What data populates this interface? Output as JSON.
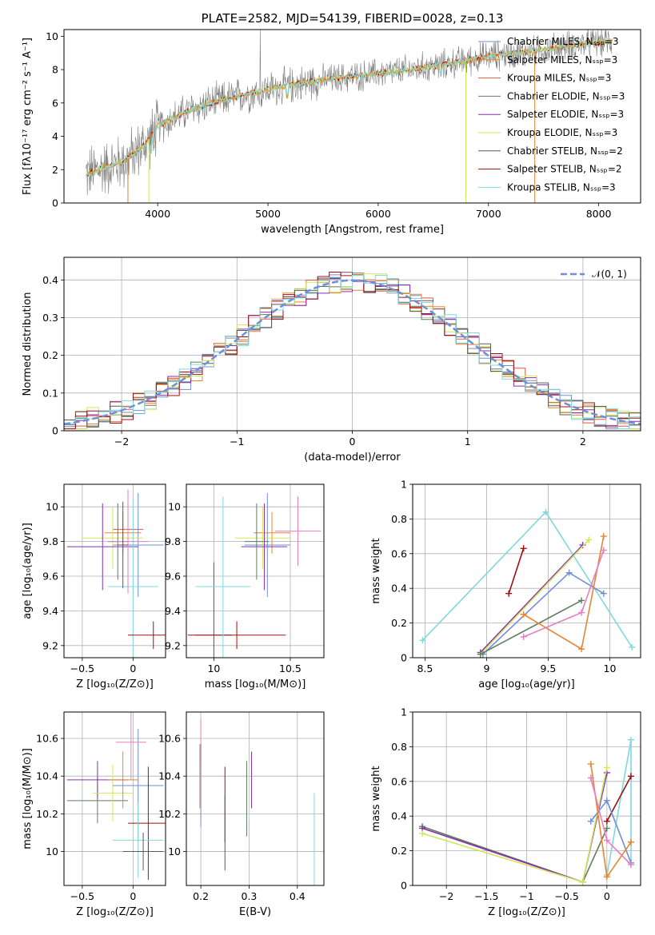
{
  "colors": {
    "chabrier_miles": "#6f8fd8",
    "salpeter_miles": "#e8852e",
    "kroupa_miles": "#e05a3c",
    "chabrier_elodie": "#5d7f5d",
    "salpeter_elodie": "#8a2fb0",
    "kroupa_elodie": "#cfe85a",
    "chabrier_stelib": "#5a5a5a",
    "salpeter_stelib": "#a01010",
    "kroupa_stelib": "#7fd9dd",
    "extra_pink": "#e87ec0",
    "normal_curve": "#6f8fd8",
    "grid": "#b0b0b0",
    "data_spectrum": "#7f7f7f"
  },
  "chart_data": [
    {
      "id": "spectrum",
      "type": "line",
      "title": "PLATE=2582, MJD=54139, FIBERID=0028, z=0.13",
      "xlabel": "wavelength [Angstrom, rest frame]",
      "ylabel": "Flux [fλ10⁻¹⁷ erg cm⁻² s⁻¹ A⁻¹]",
      "xlim": [
        3150,
        8380
      ],
      "ylim": [
        0,
        10.4
      ],
      "xticks": [
        4000,
        5000,
        6000,
        7000,
        8000
      ],
      "yticks": [
        0,
        2,
        4,
        6,
        8,
        10
      ],
      "grid": false,
      "legend_position": "top-right",
      "legend": [
        "Chabrier MILES, Nₛₛₚ=3",
        "Salpeter MILES, Nₛₛₚ=3",
        "Kroupa MILES, Nₛₛₚ=3",
        "Chabrier ELODIE, Nₛₛₚ=3",
        "Salpeter ELODIE, Nₛₛₚ=3",
        "Kroupa ELODIE, Nₛₛₚ=3",
        "Chabrier STELIB, Nₛₛₚ=2",
        "Salpeter STELIB, Nₛₛₚ=2",
        "Kroupa STELIB, Nₛₛₚ=3"
      ],
      "continuum": {
        "x": [
          3350,
          3500,
          3700,
          3900,
          4000,
          4300,
          4600,
          5000,
          5400,
          5800,
          6200,
          6600,
          7000,
          7400,
          7800,
          8100
        ],
        "y": [
          1.7,
          2.1,
          2.5,
          3.6,
          4.6,
          5.6,
          6.2,
          6.8,
          7.3,
          7.6,
          7.9,
          8.3,
          8.8,
          9.1,
          9.5,
          9.7
        ]
      }
    },
    {
      "id": "residual_histogram",
      "type": "line",
      "xlabel": "(data-model)/error",
      "ylabel": "Normed distribution",
      "xlim": [
        -2.5,
        2.5
      ],
      "ylim": [
        0,
        0.46
      ],
      "xticks": [
        -2,
        -1,
        0,
        1,
        2
      ],
      "yticks": [
        0.0,
        0.1,
        0.2,
        0.3,
        0.4
      ],
      "grid": true,
      "legend_position": "top-right",
      "legend": [
        "𝒩(0, 1)"
      ],
      "bin_width": 0.1
    },
    {
      "id": "age_vs_Z",
      "type": "scatter",
      "xlabel": "Z [log₁₀(Z/Z⊙)]",
      "ylabel": "age  [log₁₀(age/yr)]",
      "xlim": [
        -0.68,
        0.32
      ],
      "ylim": [
        9.13,
        10.13
      ],
      "xticks": [
        -0.5,
        0.0
      ],
      "yticks": [
        9.2,
        9.4,
        9.6,
        9.8,
        10.0
      ],
      "grid": true,
      "points": [
        {
          "series": "salpeter_miles",
          "x": -0.1,
          "xerr": 0.18,
          "y": 9.85,
          "yerr": 0.12
        },
        {
          "series": "kroupa_miles",
          "x": -0.05,
          "xerr": 0.15,
          "y": 9.87,
          "yerr": 0.16
        },
        {
          "series": "chabrier_miles",
          "x": 0.05,
          "xerr": 0.25,
          "y": 9.78,
          "yerr": 0.3
        },
        {
          "series": "kroupa_elodie",
          "x": -0.2,
          "xerr": 0.3,
          "y": 9.82,
          "yerr": 0.18
        },
        {
          "series": "salpeter_elodie",
          "x": -0.3,
          "xerr": 0.35,
          "y": 9.77,
          "yerr": 0.25
        },
        {
          "series": "chabrier_elodie",
          "x": -0.15,
          "xerr": 0.1,
          "y": 9.8,
          "yerr": 0.22
        },
        {
          "series": "kroupa_stelib",
          "x": 0.0,
          "xerr": 0.25,
          "y": 9.54,
          "yerr": 0.5
        },
        {
          "series": "salpeter_stelib",
          "x": 0.2,
          "xerr": 0.25,
          "y": 9.26,
          "yerr": 0.08
        },
        {
          "series": "extra_pink",
          "x": -0.05,
          "xerr": 0.2,
          "y": 9.8,
          "yerr": 0.3
        },
        {
          "series": "chabrier_stelib",
          "x": -0.1,
          "xerr": 0.05,
          "y": 9.78,
          "yerr": 0.25
        }
      ]
    },
    {
      "id": "age_vs_mass",
      "type": "scatter",
      "xlabel": "mass [log₁₀(M/M⊙)]",
      "ylabel": "",
      "xlim": [
        9.82,
        10.72
      ],
      "ylim": [
        9.13,
        10.13
      ],
      "xticks": [
        10.0,
        10.5
      ],
      "yticks": [
        9.2,
        9.4,
        9.6,
        9.8,
        10.0
      ],
      "grid": true,
      "points": [
        {
          "series": "chabrier_stelib",
          "x": 10.0,
          "xerr": 0.12,
          "y": 9.26,
          "yerr": 0.42
        },
        {
          "series": "salpeter_stelib",
          "x": 10.15,
          "xerr": 0.32,
          "y": 9.26,
          "yerr": 0.08
        },
        {
          "series": "kroupa_stelib",
          "x": 10.06,
          "xerr": 0.18,
          "y": 9.54,
          "yerr": 0.52
        },
        {
          "series": "chabrier_miles",
          "x": 10.35,
          "xerr": 0.15,
          "y": 9.78,
          "yerr": 0.3
        },
        {
          "series": "salpeter_miles",
          "x": 10.38,
          "xerr": 0.12,
          "y": 9.85,
          "yerr": 0.12
        },
        {
          "series": "kroupa_elodie",
          "x": 10.32,
          "xerr": 0.18,
          "y": 9.82,
          "yerr": 0.18
        },
        {
          "series": "salpeter_elodie",
          "x": 10.33,
          "xerr": 0.15,
          "y": 9.77,
          "yerr": 0.25
        },
        {
          "series": "chabrier_elodie",
          "x": 10.28,
          "xerr": 0.08,
          "y": 9.8,
          "yerr": 0.22
        },
        {
          "series": "extra_pink",
          "x": 10.55,
          "xerr": 0.15,
          "y": 9.86,
          "yerr": 0.2
        }
      ]
    },
    {
      "id": "mass_weight_vs_age",
      "type": "line",
      "xlabel": "age  [log₁₀(age/yr)]",
      "ylabel": "mass weight",
      "xlim": [
        8.4,
        10.25
      ],
      "ylim": [
        0,
        1
      ],
      "xticks": [
        8.5,
        9.0,
        9.5,
        10.0
      ],
      "yticks": [
        0.0,
        0.2,
        0.4,
        0.6,
        0.8,
        1.0
      ],
      "grid": true,
      "series": [
        {
          "color": "kroupa_stelib",
          "x": [
            8.48,
            9.48,
            10.18
          ],
          "y": [
            0.1,
            0.84,
            0.06
          ]
        },
        {
          "color": "salpeter_stelib",
          "x": [
            9.18,
            9.3
          ],
          "y": [
            0.37,
            0.63
          ]
        },
        {
          "color": "salpeter_elodie",
          "x": [
            8.95,
            9.78
          ],
          "y": [
            0.03,
            0.65
          ]
        },
        {
          "color": "kroupa_elodie",
          "x": [
            8.95,
            9.83
          ],
          "y": [
            0.02,
            0.68
          ]
        },
        {
          "color": "chabrier_miles",
          "x": [
            8.97,
            9.67,
            9.95
          ],
          "y": [
            0.02,
            0.49,
            0.37
          ]
        },
        {
          "color": "chabrier_elodie",
          "x": [
            8.95,
            9.77
          ],
          "y": [
            0.02,
            0.33
          ]
        },
        {
          "color": "salpeter_miles",
          "x": [
            9.3,
            9.77,
            9.95
          ],
          "y": [
            0.25,
            0.05,
            0.7
          ]
        },
        {
          "color": "extra_pink",
          "x": [
            9.3,
            9.77,
            9.95
          ],
          "y": [
            0.12,
            0.26,
            0.62
          ]
        }
      ]
    },
    {
      "id": "mass_vs_Z",
      "type": "scatter",
      "xlabel": "Z [log₁₀(Z/Z⊙)]",
      "ylabel": "mass [log₁₀(M/M⊙)]",
      "xlim": [
        -0.68,
        0.32
      ],
      "ylim": [
        9.82,
        10.74
      ],
      "xticks": [
        -0.5,
        0.0
      ],
      "yticks": [
        10.0,
        10.2,
        10.4,
        10.6
      ],
      "grid": true,
      "points": [
        {
          "series": "chabrier_elodie",
          "x": -0.35,
          "xerr": 0.3,
          "y": 10.27,
          "yerr": 0.12
        },
        {
          "series": "salpeter_elodie",
          "x": -0.35,
          "xerr": 0.3,
          "y": 10.38,
          "yerr": 0.1
        },
        {
          "series": "kroupa_elodie",
          "x": -0.2,
          "xerr": 0.2,
          "y": 10.31,
          "yerr": 0.15
        },
        {
          "series": "chabrier_miles",
          "x": 0.05,
          "xerr": 0.25,
          "y": 10.35,
          "yerr": 0.3
        },
        {
          "series": "extra_pink",
          "x": -0.02,
          "xerr": 0.15,
          "y": 10.58,
          "yerr": 0.2
        },
        {
          "series": "salpeter_miles",
          "x": -0.1,
          "xerr": 0.15,
          "y": 10.38,
          "yerr": 0.15
        },
        {
          "series": "salpeter_stelib",
          "x": 0.15,
          "xerr": 0.2,
          "y": 10.15,
          "yerr": 0.3
        },
        {
          "series": "kroupa_stelib",
          "x": 0.05,
          "xerr": 0.25,
          "y": 10.06,
          "yerr": 0.2
        },
        {
          "series": "chabrier_stelib",
          "x": 0.1,
          "xerr": 0.2,
          "y": 10.0,
          "yerr": 0.1
        }
      ]
    },
    {
      "id": "mass_vs_ebv",
      "type": "scatter",
      "xlabel": "E(B-V)",
      "ylabel": "",
      "xlim": [
        0.17,
        0.455
      ],
      "ylim": [
        9.82,
        10.74
      ],
      "xticks": [
        0.2,
        0.3,
        0.4
      ],
      "yticks": [
        10.0,
        10.2,
        10.4,
        10.6
      ],
      "grid": true,
      "points": [
        {
          "series": "salpeter_miles",
          "x": 0.198,
          "y": 10.4,
          "yerr": 0.17
        },
        {
          "series": "extra_pink",
          "x": 0.2,
          "y": 10.58,
          "yerr": 0.12
        },
        {
          "series": "chabrier_miles",
          "x": 0.2,
          "y": 10.35,
          "yerr": 0.22
        },
        {
          "series": "salpeter_stelib",
          "x": 0.25,
          "y": 10.25,
          "yerr": 0.2
        },
        {
          "series": "chabrier_stelib",
          "x": 0.25,
          "y": 10.1,
          "yerr": 0.2
        },
        {
          "series": "kroupa_elodie",
          "x": 0.3,
          "y": 10.32,
          "yerr": 0.15
        },
        {
          "series": "chabrier_elodie",
          "x": 0.295,
          "y": 10.28,
          "yerr": 0.2
        },
        {
          "series": "salpeter_elodie",
          "x": 0.305,
          "y": 10.38,
          "yerr": 0.15
        },
        {
          "series": "kroupa_stelib",
          "x": 0.435,
          "y": 10.06,
          "yerr": 0.25
        }
      ]
    },
    {
      "id": "mass_weight_vs_Z",
      "type": "line",
      "xlabel": "Z [log₁₀(Z/Z⊙)]",
      "ylabel": "mass weight",
      "xlim": [
        -2.42,
        0.42
      ],
      "ylim": [
        0,
        1
      ],
      "xticks": [
        -2.0,
        -1.5,
        -1.0,
        -0.5,
        0.0
      ],
      "yticks": [
        0.0,
        0.2,
        0.4,
        0.6,
        0.8,
        1.0
      ],
      "grid": true,
      "series": [
        {
          "color": "chabrier_elodie",
          "x": [
            -2.3,
            -0.3,
            0.0
          ],
          "y": [
            0.34,
            0.02,
            0.33
          ]
        },
        {
          "color": "salpeter_elodie",
          "x": [
            -2.3,
            -0.3,
            0.0
          ],
          "y": [
            0.33,
            0.02,
            0.65
          ]
        },
        {
          "color": "kroupa_elodie",
          "x": [
            -2.3,
            -0.3,
            0.0
          ],
          "y": [
            0.3,
            0.02,
            0.68
          ]
        },
        {
          "color": "kroupa_stelib",
          "x": [
            0.0,
            0.3,
            0.3
          ],
          "y": [
            0.06,
            0.84,
            0.13
          ]
        },
        {
          "color": "salpeter_stelib",
          "x": [
            0.0,
            0.3
          ],
          "y": [
            0.37,
            0.63
          ]
        },
        {
          "color": "chabrier_miles",
          "x": [
            -0.2,
            0.0,
            0.3
          ],
          "y": [
            0.37,
            0.49,
            0.13
          ]
        },
        {
          "color": "salpeter_miles",
          "x": [
            -0.2,
            0.0,
            0.3
          ],
          "y": [
            0.7,
            0.05,
            0.25
          ]
        },
        {
          "color": "extra_pink",
          "x": [
            -0.2,
            0.0,
            0.3
          ],
          "y": [
            0.62,
            0.26,
            0.12
          ]
        }
      ]
    }
  ]
}
